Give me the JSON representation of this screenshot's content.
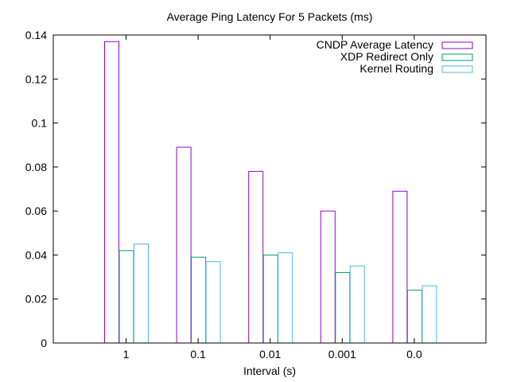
{
  "chart_data": {
    "type": "bar",
    "title": "Average Ping Latency For 5 Packets (ms)",
    "xlabel": "Interval (s)",
    "ylabel": "",
    "ylim": [
      0,
      0.14
    ],
    "yticks": [
      "0",
      "0.02",
      "0.04",
      "0.06",
      "0.08",
      "0.1",
      "0.12",
      "0.14"
    ],
    "categories": [
      "1",
      "0.1",
      "0.01",
      "0.001",
      "0.0"
    ],
    "legend_position": "top-right",
    "grid": false,
    "series": [
      {
        "name": "CNDP Average Latency",
        "color": "#9400d3",
        "values": [
          0.137,
          0.089,
          0.078,
          0.06,
          0.069
        ]
      },
      {
        "name": "XDP Redirect Only",
        "color": "#009e73",
        "values": [
          0.042,
          0.039,
          0.04,
          0.032,
          0.024
        ]
      },
      {
        "name": "Kernel Routing",
        "color": "#56b4e9",
        "values": [
          0.045,
          0.037,
          0.041,
          0.035,
          0.026
        ]
      }
    ]
  }
}
